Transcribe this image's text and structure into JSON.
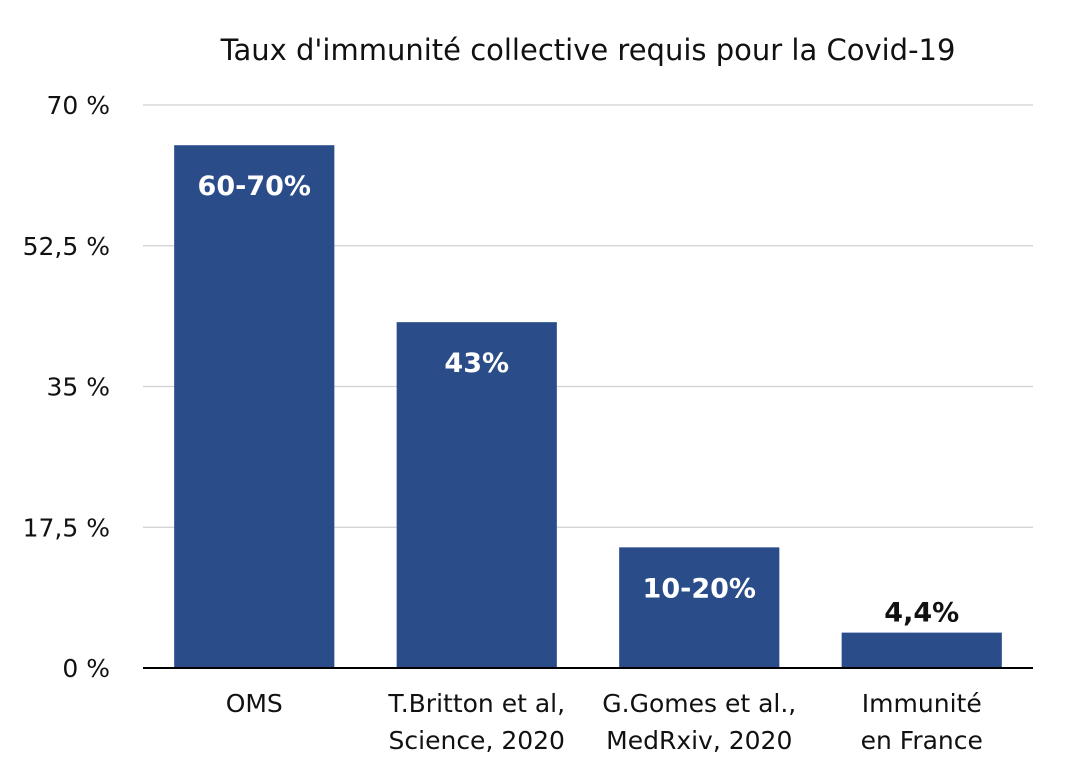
{
  "chart_data": {
    "type": "bar",
    "title": "Taux d'immunité collective requis pour la Covid-19",
    "xlabel": "",
    "ylabel": "",
    "ylim": [
      0,
      70
    ],
    "yticks": [
      0,
      17.5,
      35,
      52.5,
      70
    ],
    "ytick_labels": [
      "0 %",
      "17,5 %",
      "35 %",
      "52,5 %",
      "70 %"
    ],
    "grid": true,
    "categories": [
      [
        "OMS"
      ],
      [
        "T.Britton et al,",
        "Science, 2020"
      ],
      [
        "G.Gomes et al.,",
        "MedRxiv, 2020"
      ],
      [
        "Immunité",
        "en France"
      ]
    ],
    "values": [
      65,
      43,
      15,
      4.4
    ],
    "data_labels": [
      "60-70%",
      "43%",
      "10-20%",
      "4,4%"
    ],
    "data_label_position": [
      "inside",
      "inside",
      "inside",
      "above"
    ],
    "colors": {
      "bar": "#2a4d8a",
      "label_inside": "#ffffff",
      "label_outside": "#111111"
    }
  }
}
